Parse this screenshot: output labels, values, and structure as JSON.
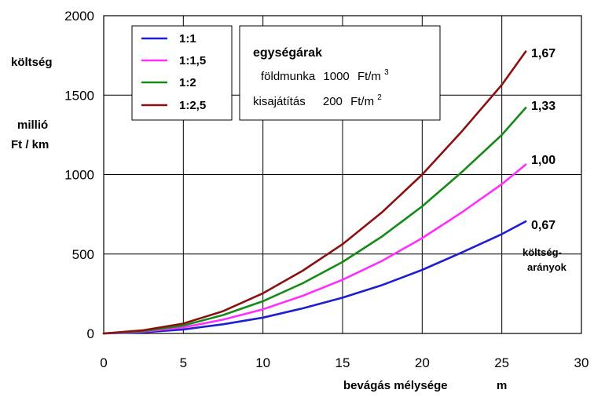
{
  "chart_data": {
    "type": "line",
    "title": "",
    "ylabel_lines": [
      "költség",
      "millió",
      "Ft / km"
    ],
    "xlabel": "bevágás mélysége",
    "xunit": "m",
    "xlim": [
      0,
      30
    ],
    "ylim": [
      0,
      2000
    ],
    "xticks": [
      0,
      5,
      10,
      15,
      20,
      25,
      30
    ],
    "yticks": [
      0,
      500,
      1000,
      1500,
      2000
    ],
    "grid": true,
    "legend_position": "top-left",
    "x": [
      0,
      2.5,
      5,
      7.5,
      10,
      12.5,
      15,
      17.5,
      20,
      22.5,
      25,
      26.5
    ],
    "series": [
      {
        "name": "1:1",
        "color": "#1f1fd0",
        "values": [
          0,
          8,
          25,
          58,
          100,
          158,
          225,
          305,
          400,
          510,
          625,
          705
        ]
      },
      {
        "name": "1:1,5",
        "color": "#ff2eff",
        "values": [
          0,
          12,
          38,
          87,
          152,
          237,
          338,
          458,
          600,
          763,
          940,
          1063
        ]
      },
      {
        "name": "1:2",
        "color": "#168a16",
        "values": [
          0,
          16,
          50,
          116,
          203,
          316,
          450,
          612,
          800,
          1017,
          1250,
          1420
        ]
      },
      {
        "name": "1:2,5",
        "color": "#8b1010",
        "values": [
          0,
          20,
          62,
          140,
          253,
          395,
          562,
          765,
          1000,
          1273,
          1565,
          1775
        ]
      }
    ],
    "end_labels": [
      "0,67",
      "1,00",
      "1,33",
      "1,67"
    ],
    "end_labels_note": [
      "költség-",
      "arányok"
    ],
    "info_box": {
      "title": "egységárak",
      "line1": {
        "label": "földmunka",
        "value": "1000",
        "unit": "Ft/m",
        "exponent": "3"
      },
      "line2": {
        "label": "kisajátítás",
        "value": "200",
        "unit": "Ft/m",
        "exponent": "2"
      }
    }
  }
}
